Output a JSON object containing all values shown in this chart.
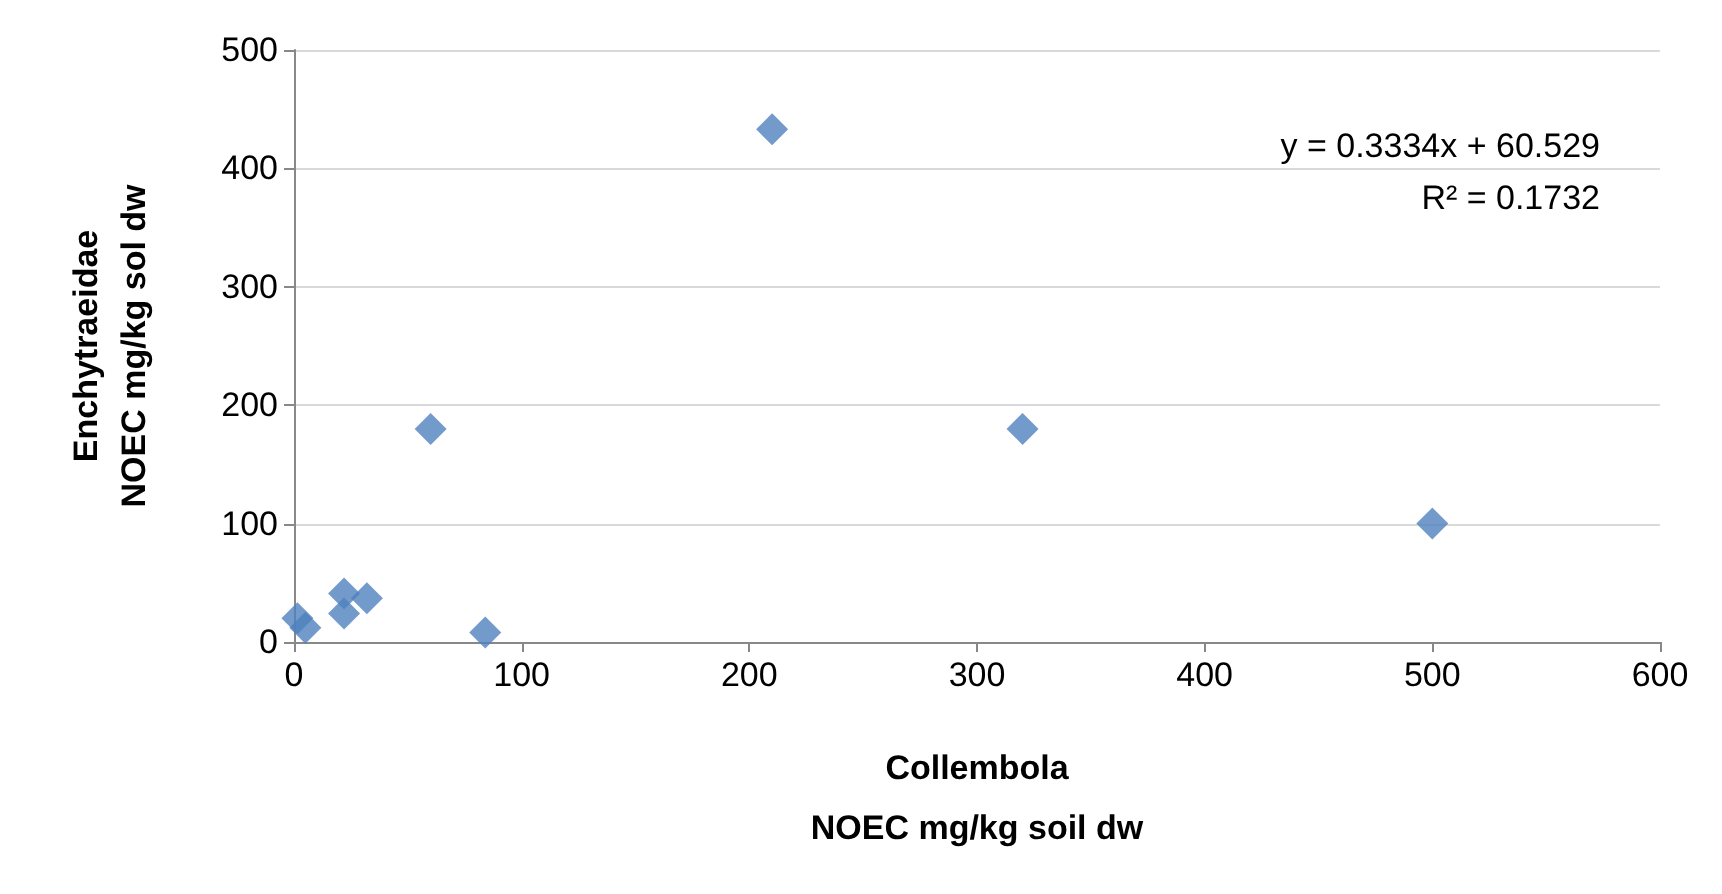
{
  "chart_data": {
    "type": "scatter",
    "xlabel": "Collembola\nNOEC mg/kg soil dw",
    "ylabel": "Enchytraeidae\nNOEC mg/kg sol dw",
    "x": [
      1.5,
      5,
      22,
      22,
      32,
      60,
      84,
      210,
      320,
      500
    ],
    "values": [
      20,
      12,
      41,
      24,
      37,
      180,
      8,
      433,
      180,
      100
    ],
    "color": "#4f81bd",
    "marker": "diamond",
    "xlim": [
      0,
      600
    ],
    "xticks": [
      0,
      100,
      200,
      300,
      400,
      500,
      600
    ],
    "ylim": [
      0,
      500
    ],
    "yticks": [
      0,
      100,
      200,
      300,
      400,
      500
    ],
    "grid": "y",
    "annotations": [
      "y = 0.3334x + 60.529\nR² = 0.1732"
    ]
  }
}
